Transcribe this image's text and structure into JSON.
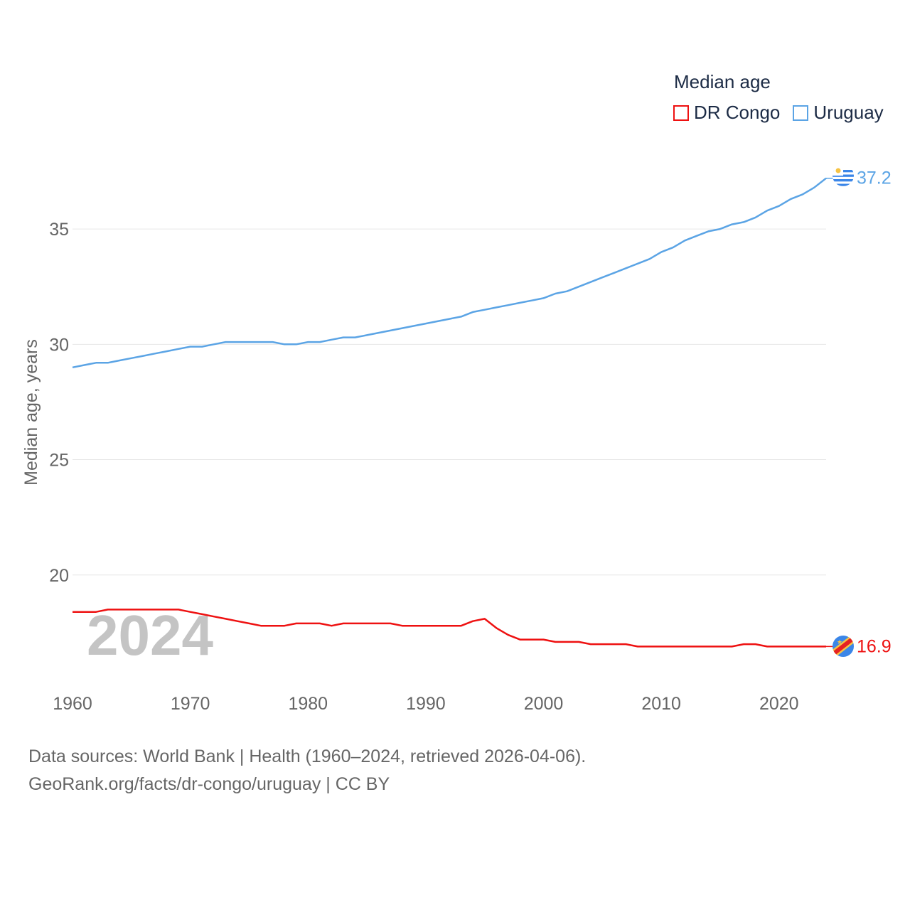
{
  "legend": {
    "title": "Median age",
    "items": [
      {
        "name": "DR Congo",
        "color": "#ee1111"
      },
      {
        "name": "Uruguay",
        "color": "#5ba4e5"
      }
    ]
  },
  "source": {
    "line1": "Data sources: World Bank | Health (1960–2024, retrieved 2026-04-06).",
    "line2": "GeoRank.org/facts/dr-congo/uruguay | CC BY"
  },
  "chart_data": {
    "type": "line",
    "title": "Median age",
    "xlabel": "",
    "ylabel": "Median age, years",
    "year_label": "2024",
    "xlim": [
      1960,
      2024
    ],
    "ylim": [
      15,
      37.5
    ],
    "yticks": [
      20,
      25,
      30,
      35
    ],
    "xticks": [
      1960,
      1970,
      1980,
      1990,
      2000,
      2010,
      2020
    ],
    "grid": true,
    "x": [
      1960,
      1961,
      1962,
      1963,
      1964,
      1965,
      1966,
      1967,
      1968,
      1969,
      1970,
      1971,
      1972,
      1973,
      1974,
      1975,
      1976,
      1977,
      1978,
      1979,
      1980,
      1981,
      1982,
      1983,
      1984,
      1985,
      1986,
      1987,
      1988,
      1989,
      1990,
      1991,
      1992,
      1993,
      1994,
      1995,
      1996,
      1997,
      1998,
      1999,
      2000,
      2001,
      2002,
      2003,
      2004,
      2005,
      2006,
      2007,
      2008,
      2009,
      2010,
      2011,
      2012,
      2013,
      2014,
      2015,
      2016,
      2017,
      2018,
      2019,
      2020,
      2021,
      2022,
      2023,
      2024
    ],
    "series": [
      {
        "name": "Uruguay",
        "color": "#5ba4e5",
        "end_label": "37.2",
        "values": [
          29.0,
          29.1,
          29.2,
          29.2,
          29.3,
          29.4,
          29.5,
          29.6,
          29.7,
          29.8,
          29.9,
          29.9,
          30.0,
          30.1,
          30.1,
          30.1,
          30.1,
          30.1,
          30.0,
          30.0,
          30.1,
          30.1,
          30.2,
          30.3,
          30.3,
          30.4,
          30.5,
          30.6,
          30.7,
          30.8,
          30.9,
          31.0,
          31.1,
          31.2,
          31.4,
          31.5,
          31.6,
          31.7,
          31.8,
          31.9,
          32.0,
          32.2,
          32.3,
          32.5,
          32.7,
          32.9,
          33.1,
          33.3,
          33.5,
          33.7,
          34.0,
          34.2,
          34.5,
          34.7,
          34.9,
          35.0,
          35.2,
          35.3,
          35.5,
          35.8,
          36.0,
          36.3,
          36.5,
          36.8,
          37.2
        ]
      },
      {
        "name": "DR Congo",
        "color": "#ee1111",
        "end_label": "16.9",
        "values": [
          18.4,
          18.4,
          18.4,
          18.5,
          18.5,
          18.5,
          18.5,
          18.5,
          18.5,
          18.5,
          18.4,
          18.3,
          18.2,
          18.1,
          18.0,
          17.9,
          17.8,
          17.8,
          17.8,
          17.9,
          17.9,
          17.9,
          17.8,
          17.9,
          17.9,
          17.9,
          17.9,
          17.9,
          17.8,
          17.8,
          17.8,
          17.8,
          17.8,
          17.8,
          18.0,
          18.1,
          17.7,
          17.4,
          17.2,
          17.2,
          17.2,
          17.1,
          17.1,
          17.1,
          17.0,
          17.0,
          17.0,
          17.0,
          16.9,
          16.9,
          16.9,
          16.9,
          16.9,
          16.9,
          16.9,
          16.9,
          16.9,
          17.0,
          17.0,
          16.9,
          16.9,
          16.9,
          16.9,
          16.9,
          16.9
        ]
      }
    ]
  }
}
